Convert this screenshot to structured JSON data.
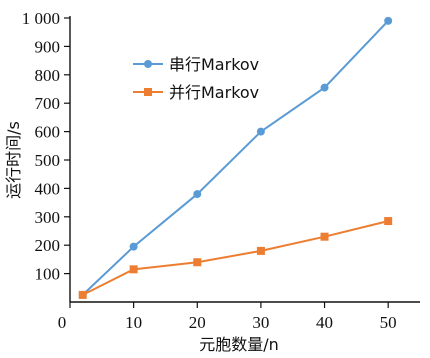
{
  "chart_data": {
    "type": "line",
    "xlabel": "元胞数量/n",
    "ylabel": "运行时间/s",
    "xlim": [
      0,
      55
    ],
    "ylim": [
      0,
      1000
    ],
    "x_ticks": [
      "0",
      "10",
      "20",
      "30",
      "40",
      "50"
    ],
    "y_ticks": [
      "100",
      "200",
      "300",
      "400",
      "500",
      "600",
      "700",
      "800",
      "900",
      "1 000"
    ],
    "legend_position": "top-left",
    "grid": false,
    "series": [
      {
        "name": "串行Markov",
        "color": "#5b9bd5",
        "marker": "circle",
        "x": [
          2,
          10,
          20,
          30,
          40,
          50
        ],
        "y": [
          25,
          195,
          380,
          600,
          755,
          990
        ]
      },
      {
        "name": "并行Markov",
        "color": "#ed7d31",
        "marker": "square",
        "x": [
          2,
          10,
          20,
          30,
          40,
          50
        ],
        "y": [
          25,
          115,
          140,
          180,
          230,
          285
        ]
      }
    ]
  }
}
